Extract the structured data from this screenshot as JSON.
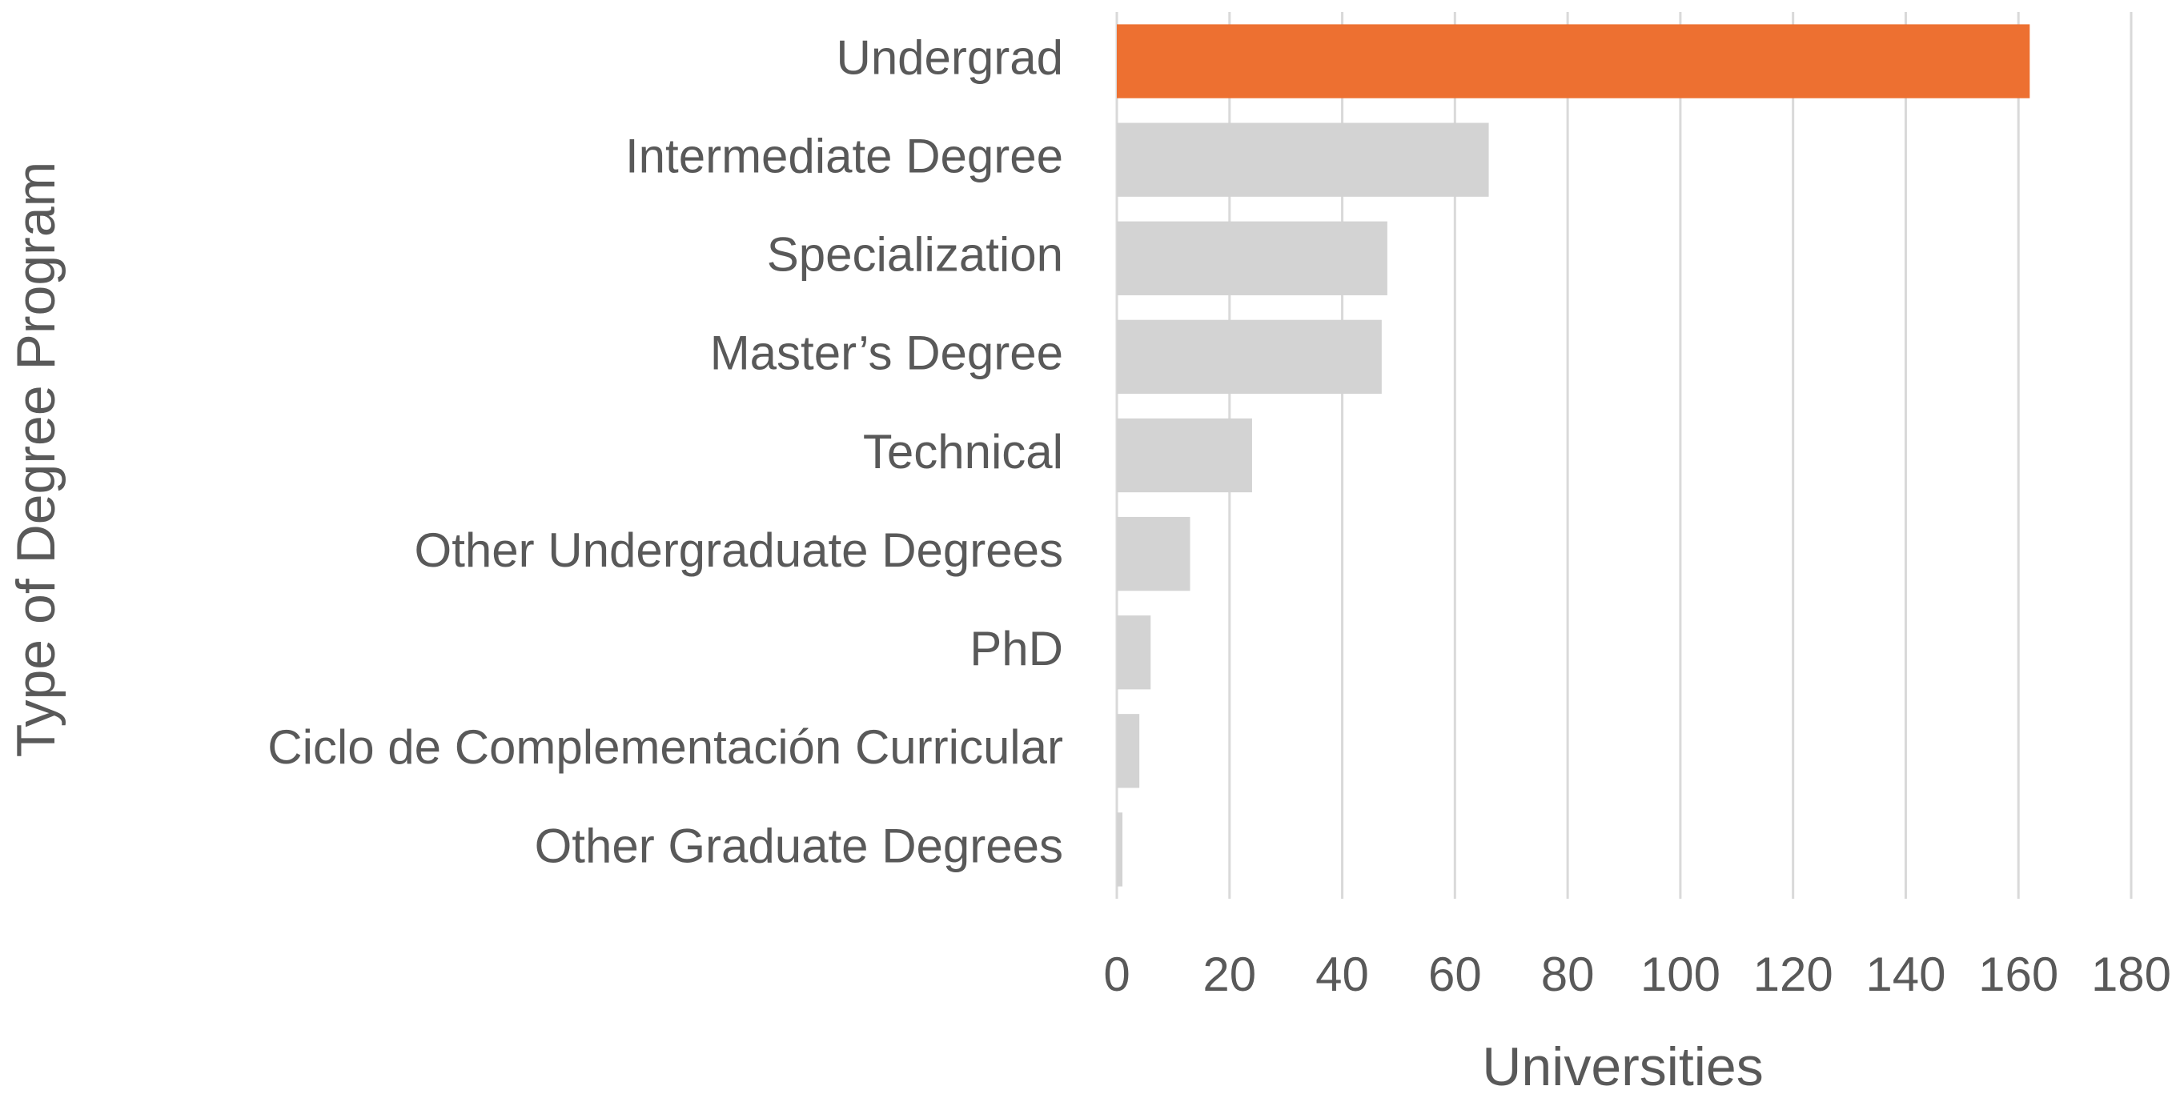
{
  "chart_data": {
    "type": "bar",
    "orientation": "horizontal",
    "x_label": "Universities",
    "y_label": "Type of Degree Program",
    "categories": [
      "Undergrad",
      "Intermediate Degree",
      "Specialization",
      "Master’s Degree",
      "Technical",
      "Other Undergraduate Degrees",
      "PhD",
      "Ciclo de Complementación Curricular",
      "Other Graduate Degrees"
    ],
    "values": [
      162,
      66,
      48,
      47,
      24,
      13,
      6,
      4,
      1
    ],
    "colors": [
      "#ed7031",
      "#d3d3d3",
      "#d3d3d3",
      "#d3d3d3",
      "#d3d3d3",
      "#d3d3d3",
      "#d3d3d3",
      "#d3d3d3",
      "#d3d3d3"
    ],
    "xlim": [
      0,
      180
    ],
    "xticks": [
      0,
      20,
      40,
      60,
      80,
      100,
      120,
      140,
      160,
      180
    ],
    "grid": true
  }
}
